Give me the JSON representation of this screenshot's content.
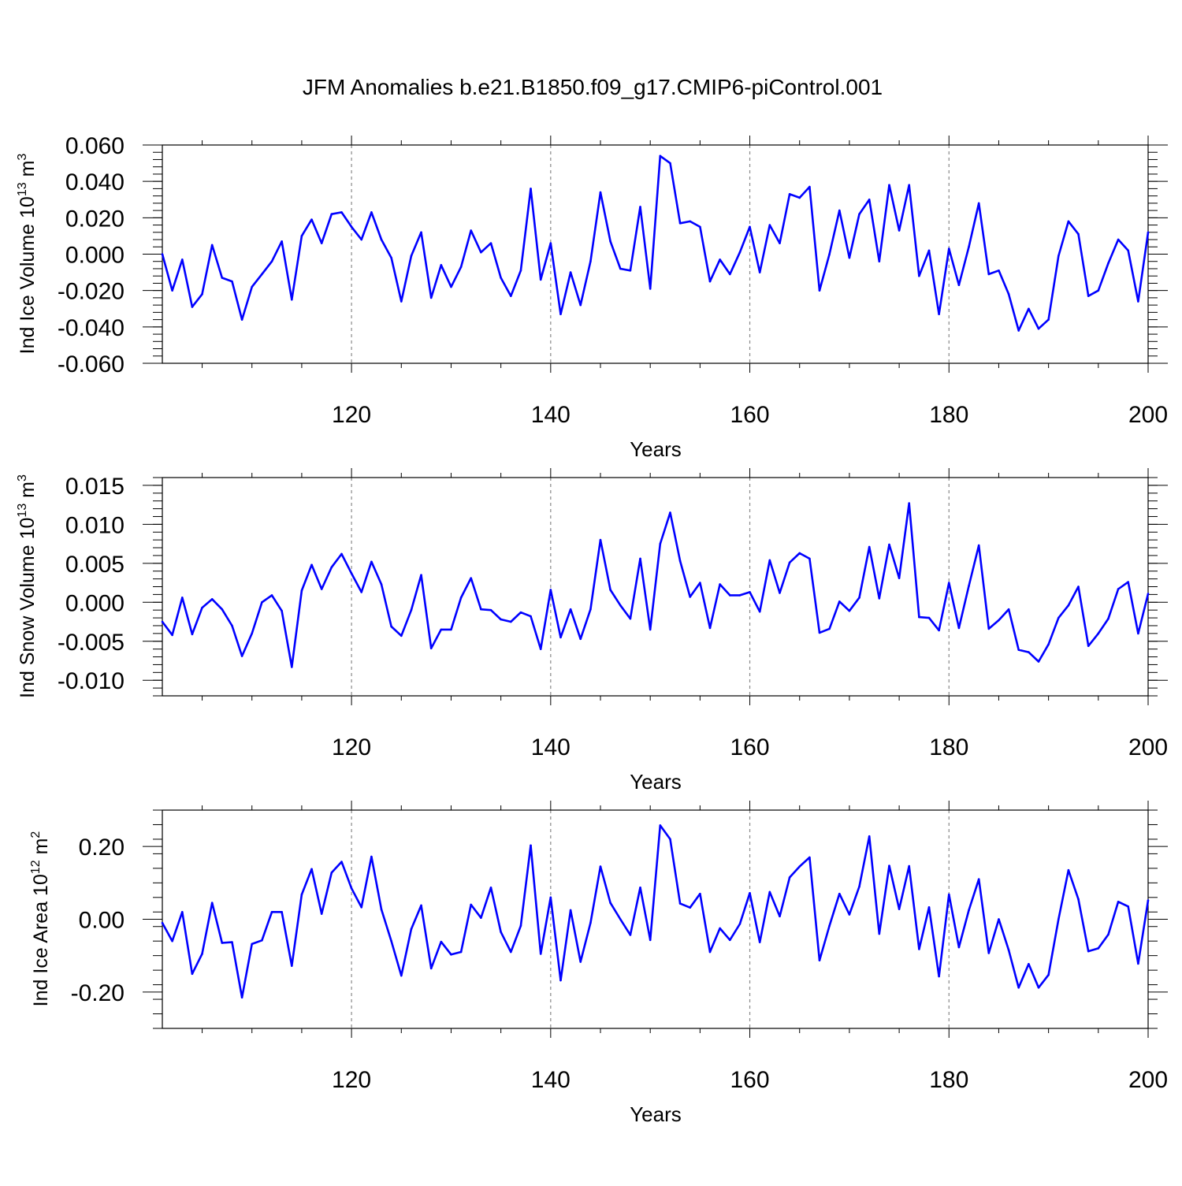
{
  "title": "JFM Anomalies b.e21.B1850.f09_g17.CMIP6-piControl.001",
  "line_color": "#0000ff",
  "chart_data": [
    {
      "type": "line",
      "ylabel": "Ind Ice Volume 10",
      "ylabel_exp": "13",
      "ylabel_unit": " m",
      "ylabel_unit_exp": "3",
      "xlabel": "Years",
      "xlim": [
        101,
        200
      ],
      "ylim": [
        -0.06,
        0.06
      ],
      "xticks": [
        120,
        140,
        160,
        180,
        200
      ],
      "xtick_labels": [
        "120",
        "140",
        "160",
        "180",
        "200"
      ],
      "yticks": [
        -0.06,
        -0.04,
        -0.02,
        0.0,
        0.02,
        0.04,
        0.06
      ],
      "ytick_labels": [
        "-0.060",
        "-0.040",
        "-0.020",
        "0.000",
        "0.020",
        "0.040",
        "0.060"
      ],
      "x_start": 101,
      "values": [
        0.0,
        -0.02,
        -0.003,
        -0.029,
        -0.022,
        0.005,
        -0.013,
        -0.015,
        -0.036,
        -0.018,
        -0.011,
        -0.004,
        0.007,
        -0.025,
        0.01,
        0.019,
        0.006,
        0.022,
        0.023,
        0.015,
        0.008,
        0.023,
        0.008,
        -0.002,
        -0.026,
        -0.001,
        0.012,
        -0.024,
        -0.006,
        -0.018,
        -0.007,
        0.013,
        0.001,
        0.006,
        -0.013,
        -0.023,
        -0.009,
        0.036,
        -0.014,
        0.006,
        -0.033,
        -0.01,
        -0.028,
        -0.004,
        0.034,
        0.007,
        -0.008,
        -0.009,
        0.026,
        -0.019,
        0.054,
        0.05,
        0.017,
        0.018,
        0.015,
        -0.015,
        -0.003,
        -0.011,
        0.001,
        0.015,
        -0.01,
        0.016,
        0.006,
        0.033,
        0.031,
        0.037,
        -0.02,
        0.0,
        0.024,
        -0.002,
        0.022,
        0.03,
        -0.004,
        0.038,
        0.013,
        0.038,
        -0.012,
        0.002,
        -0.033,
        0.003,
        -0.017,
        0.004,
        0.028,
        -0.011,
        -0.009,
        -0.022,
        -0.042,
        -0.03,
        -0.041,
        -0.036,
        -0.001,
        0.018,
        0.011,
        -0.023,
        -0.02,
        -0.005,
        0.008,
        0.002,
        -0.026,
        0.012
      ]
    },
    {
      "type": "line",
      "ylabel": "Ind Snow Volume 10",
      "ylabel_exp": "13",
      "ylabel_unit": " m",
      "ylabel_unit_exp": "3",
      "xlabel": "Years",
      "xlim": [
        101,
        200
      ],
      "ylim": [
        -0.012,
        0.016
      ],
      "xticks": [
        120,
        140,
        160,
        180,
        200
      ],
      "xtick_labels": [
        "120",
        "140",
        "160",
        "180",
        "200"
      ],
      "yticks": [
        -0.01,
        -0.005,
        0.0,
        0.005,
        0.01,
        0.015
      ],
      "ytick_labels": [
        "-0.010",
        "-0.005",
        "0.000",
        "0.005",
        "0.010",
        "0.015"
      ],
      "x_start": 101,
      "values": [
        -0.0025,
        -0.0042,
        0.0006,
        -0.0041,
        -0.0007,
        0.0004,
        -0.0009,
        -0.003,
        -0.0069,
        -0.004,
        0.0,
        0.0009,
        -0.0011,
        -0.0083,
        0.0015,
        0.0048,
        0.0017,
        0.0045,
        0.0062,
        0.0037,
        0.0013,
        0.0052,
        0.0023,
        -0.0031,
        -0.0043,
        -0.001,
        0.0035,
        -0.0059,
        -0.0035,
        -0.0035,
        0.0006,
        0.0031,
        -0.0009,
        -0.001,
        -0.0022,
        -0.0025,
        -0.0013,
        -0.0018,
        -0.006,
        0.0016,
        -0.0045,
        -0.0009,
        -0.0047,
        -0.0009,
        0.008,
        0.0016,
        -0.0004,
        -0.0021,
        0.0056,
        -0.0035,
        0.0075,
        0.0115,
        0.0053,
        0.0007,
        0.0025,
        -0.0033,
        0.0023,
        0.0009,
        0.0009,
        0.0013,
        -0.0012,
        0.0054,
        0.0012,
        0.0051,
        0.0063,
        0.0056,
        -0.0039,
        -0.0034,
        0.0001,
        -0.0011,
        0.0006,
        0.0071,
        0.0005,
        0.0074,
        0.0031,
        0.0127,
        -0.0019,
        -0.002,
        -0.0036,
        0.0025,
        -0.0033,
        0.0021,
        0.0073,
        -0.0034,
        -0.0023,
        -0.0009,
        -0.0061,
        -0.0064,
        -0.0076,
        -0.0054,
        -0.002,
        -0.0004,
        0.002,
        -0.0056,
        -0.004,
        -0.0021,
        0.0017,
        0.0026,
        -0.004,
        0.0011
      ]
    },
    {
      "type": "line",
      "ylabel": "Ind Ice Area 10",
      "ylabel_exp": "12",
      "ylabel_unit": " m",
      "ylabel_unit_exp": "2",
      "xlabel": "Years",
      "xlim": [
        101,
        200
      ],
      "ylim": [
        -0.3,
        0.3
      ],
      "xticks": [
        120,
        140,
        160,
        180,
        200
      ],
      "xtick_labels": [
        "120",
        "140",
        "160",
        "180",
        "200"
      ],
      "yticks": [
        -0.2,
        0.0,
        0.2
      ],
      "ytick_labels": [
        "-0.20",
        "0.00",
        "0.20"
      ],
      "x_start": 101,
      "values": [
        -0.01,
        -0.06,
        0.02,
        -0.15,
        -0.095,
        0.045,
        -0.065,
        -0.063,
        -0.215,
        -0.068,
        -0.058,
        0.02,
        0.02,
        -0.128,
        0.068,
        0.138,
        0.015,
        0.128,
        0.158,
        0.085,
        0.033,
        0.172,
        0.027,
        -0.06,
        -0.155,
        -0.027,
        0.038,
        -0.135,
        -0.062,
        -0.097,
        -0.09,
        0.04,
        0.004,
        0.087,
        -0.035,
        -0.09,
        -0.018,
        0.203,
        -0.095,
        0.06,
        -0.168,
        0.025,
        -0.117,
        -0.01,
        0.145,
        0.045,
        0.0,
        -0.043,
        0.087,
        -0.057,
        0.258,
        0.22,
        0.043,
        0.032,
        0.07,
        -0.09,
        -0.025,
        -0.057,
        -0.013,
        0.072,
        -0.063,
        0.075,
        0.008,
        0.115,
        0.145,
        0.17,
        -0.113,
        -0.018,
        0.07,
        0.013,
        0.09,
        0.228,
        -0.04,
        0.147,
        0.028,
        0.146,
        -0.082,
        0.033,
        -0.157,
        0.068,
        -0.077,
        0.025,
        0.11,
        -0.093,
        0.0,
        -0.085,
        -0.188,
        -0.123,
        -0.188,
        -0.153,
        0.0,
        0.135,
        0.055,
        -0.088,
        -0.08,
        -0.042,
        0.048,
        0.035,
        -0.122,
        0.052
      ]
    }
  ]
}
